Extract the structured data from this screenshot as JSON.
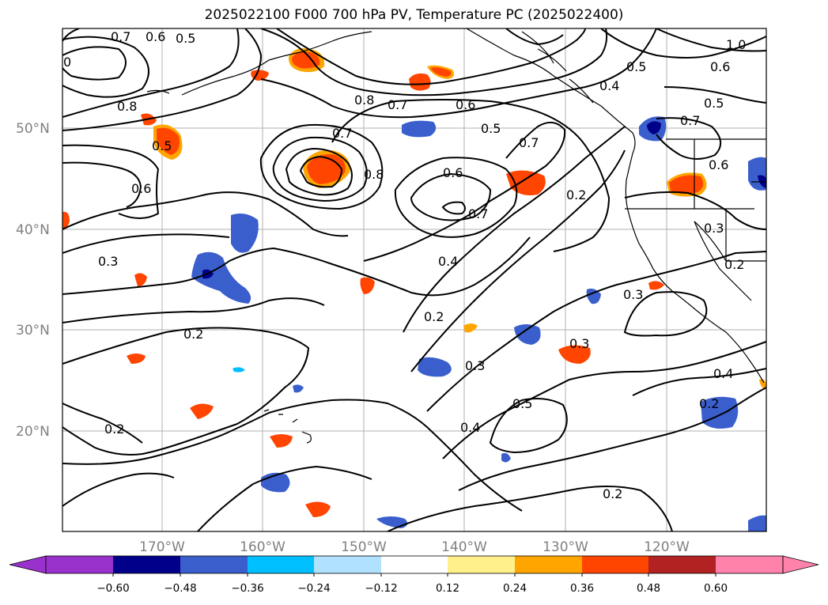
{
  "title": "2025022100 F000 700 hPa PV, Temperature PC (2025022400)",
  "colors": {
    "contour": "#000000",
    "grid": "#aaaaaa",
    "tick_label": "#808080",
    "coast": "#000000"
  },
  "lat_labels": [
    "50°N",
    "40°N",
    "30°N",
    "20°N"
  ],
  "lon_labels": [
    "170°W",
    "160°W",
    "150°W",
    "140°W",
    "130°W",
    "120°W"
  ],
  "colorbar": {
    "colors": [
      "#9932cc",
      "#00008b",
      "#3a5fcd",
      "#00bfff",
      "#b0e2ff",
      "#ffffff",
      "#fff08c",
      "#ffa500",
      "#ff4500",
      "#b22222",
      "#ff82ab"
    ],
    "ticks": [
      "−0.60",
      "−0.48",
      "−0.36",
      "−0.24",
      "−0.12",
      "0.12",
      "0.24",
      "0.36",
      "0.48",
      "0.60"
    ]
  },
  "contour_labels": [
    "0.7",
    "0.6",
    "0.5",
    "0",
    "0.8",
    "0.5",
    "0.6",
    "0.8",
    "0.7",
    "0.6",
    "0.5",
    "0.7",
    "0.7",
    "0.6",
    "0.7",
    "0.8",
    "0.4",
    "0.2",
    "0.5",
    "0.4",
    "1.0",
    "0.6",
    "0.5",
    "0.7",
    "0.6",
    "0.3",
    "0.2",
    "0.3",
    "0.2",
    "0.3",
    "0.3",
    "0.3",
    "0.4",
    "0.2",
    "0.5",
    "0.4",
    "0.2",
    "0.2",
    "0.2"
  ]
}
